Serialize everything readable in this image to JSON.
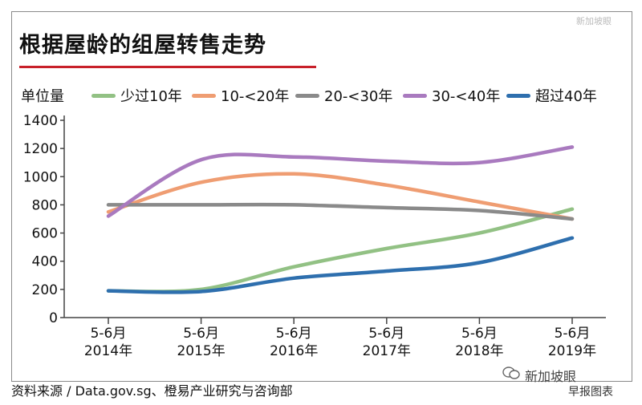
{
  "chart_data": {
    "type": "line",
    "title": "根据屋龄的组屋转售走势",
    "ylabel": "单位量",
    "xlabel": "",
    "categories": [
      "5-6月\n2014年",
      "5-6月\n2015年",
      "5-6月\n2016年",
      "5-6月\n2017年",
      "5-6月\n2018年",
      "5-6月\n2019年"
    ],
    "ylim": [
      0,
      1400
    ],
    "yticks": [
      0,
      200,
      400,
      600,
      800,
      1000,
      1200,
      1400
    ],
    "series": [
      {
        "name": "少过10年",
        "color": "#92c184",
        "values": [
          190,
          200,
          360,
          490,
          600,
          770
        ]
      },
      {
        "name": "10-<20年",
        "color": "#ef9d72",
        "values": [
          750,
          960,
          1020,
          940,
          820,
          700
        ]
      },
      {
        "name": "20-<30年",
        "color": "#8a8a8a",
        "values": [
          800,
          800,
          800,
          780,
          760,
          700
        ]
      },
      {
        "name": "30-<40年",
        "color": "#a97abf",
        "values": [
          720,
          1120,
          1140,
          1110,
          1100,
          1210
        ]
      },
      {
        "name": "超过40年",
        "color": "#2e6fae",
        "values": [
          190,
          185,
          280,
          330,
          390,
          565
        ]
      }
    ],
    "grid": false,
    "legend_position": "top"
  },
  "source": "资料来源 / Data.gov.sg、橙易产业研究与咨询部",
  "publisher": "早报图表",
  "watermark": "新加坡眼",
  "corner_mark": "新加坡眼",
  "colors": {
    "title_rule": "#c8202a",
    "axis": "#444444"
  }
}
